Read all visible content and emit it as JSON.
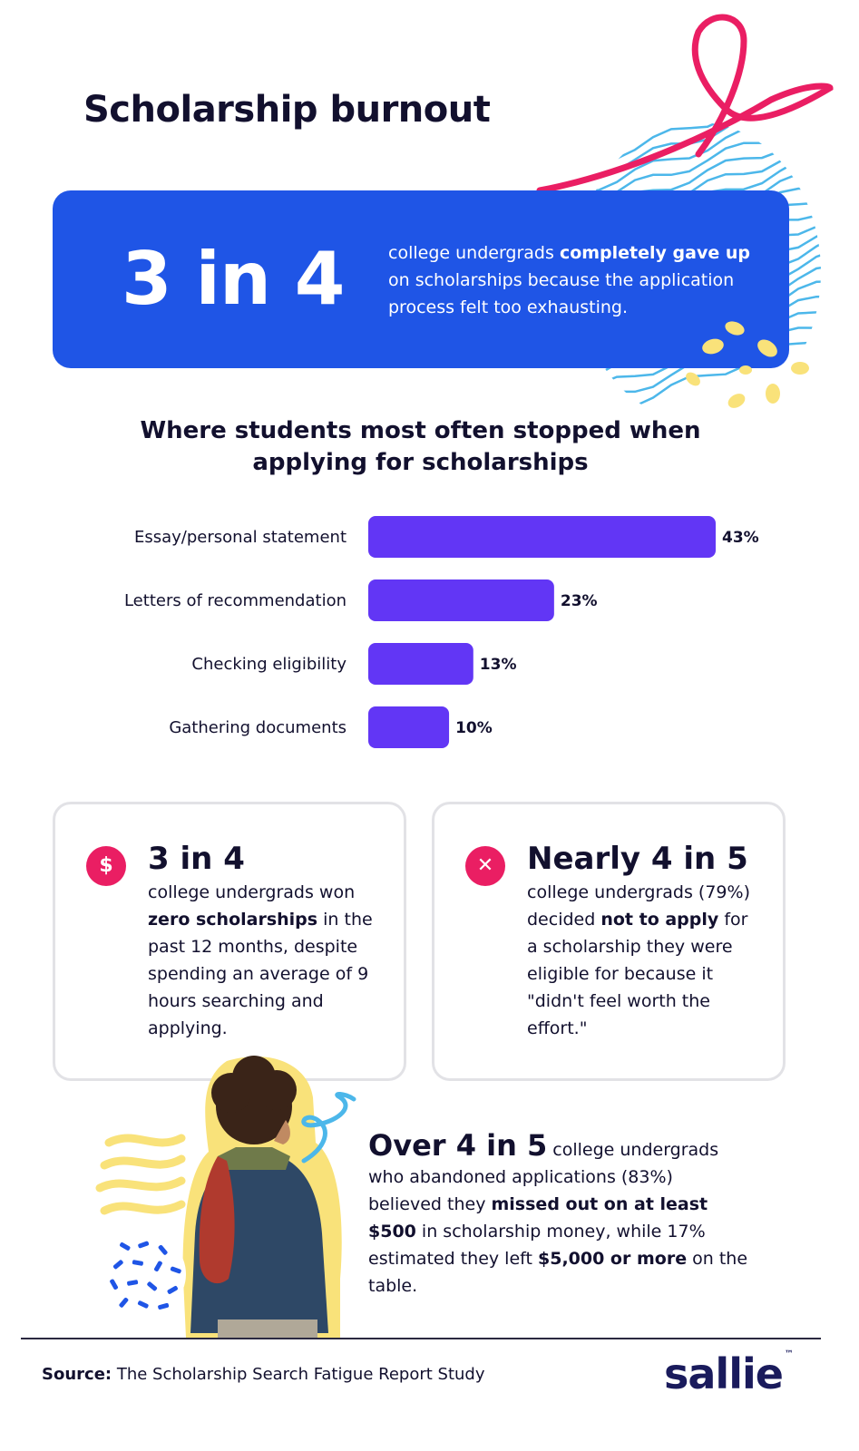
{
  "title": "Scholarship burnout",
  "hero": {
    "stat": "3 in 4",
    "text_before": "college undergrads ",
    "text_bold": "completely gave up",
    "text_after": " on scholarships because the application process felt too exhausting."
  },
  "chart_data": {
    "type": "bar",
    "orientation": "horizontal",
    "title": "Where students most often stopped when applying for scholarships",
    "categories": [
      "Essay/personal statement",
      "Letters of recommendation",
      "Checking eligibility",
      "Gathering documents"
    ],
    "values": [
      43,
      23,
      13,
      10
    ],
    "value_labels": [
      "43%",
      "23%",
      "13%",
      "10%"
    ],
    "xlim": [
      0,
      43
    ],
    "grid": false,
    "bar_color": "#6236f5"
  },
  "cards": [
    {
      "icon": "dollar-icon",
      "icon_glyph": "$",
      "stat": "3 in 4",
      "text_before": "college undergrads won ",
      "text_bold": "zero scholarships",
      "text_after": " in the past 12 months, despite spending an average of 9 hours searching and applying."
    },
    {
      "icon": "close-icon",
      "icon_glyph": "✕",
      "stat": "Nearly 4 in 5",
      "text_before": "college undergrads (79%) decided ",
      "text_bold": "not to apply",
      "text_after": " for a scholarship they were eligible for because it \"didn't feel worth the effort.\""
    }
  ],
  "bottom": {
    "stat": "Over 4 in 5",
    "text_1": "college undergrads who abandoned applications (83%) believed they ",
    "bold_1": "missed out on at least $500",
    "text_2": " in scholarship money, while 17% estimated they left ",
    "bold_2": "$5,000 or more",
    "text_3": " on the table."
  },
  "footer": {
    "source_label": "Source:",
    "source_text": " The Scholarship Search Fatigue Report Study",
    "logo": "sallie",
    "logo_tm": "™"
  },
  "colors": {
    "navy": "#12102e",
    "hero_blue": "#1f55e6",
    "bar_purple": "#6236f5",
    "accent_pink": "#ea1e63",
    "accent_yellow": "#f9e27a",
    "accent_cyan": "#4cb7ea"
  }
}
